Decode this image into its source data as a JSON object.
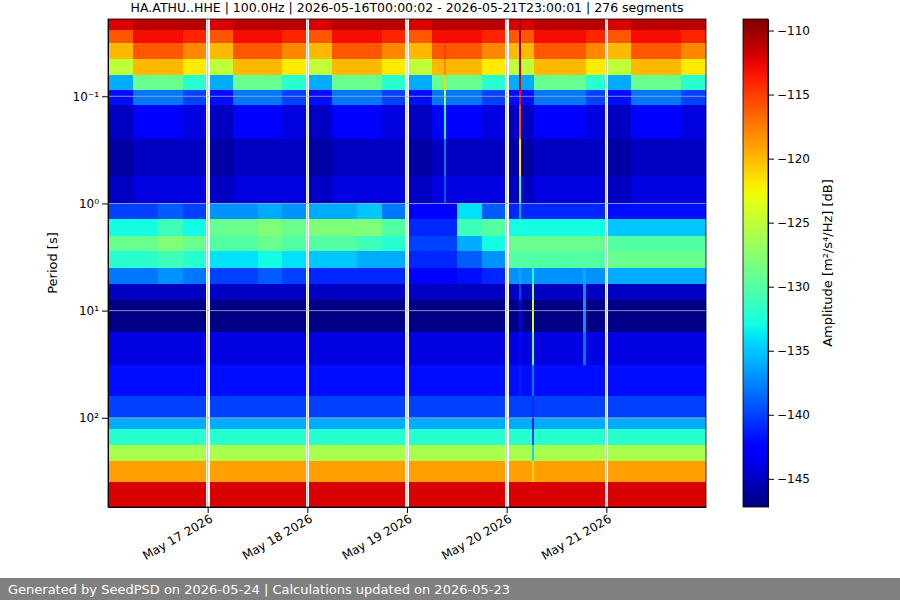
{
  "chart_data": {
    "type": "heatmap",
    "title": "HA.ATHU..HHE | 100.0Hz | 2026-05-16T00:00:02 - 2026-05-21T23:00:01 | 276 segments",
    "y_label": "Period [s]",
    "footer": "Generated by SeedPSD on 2026-05-24 | Calculations updated on 2026-05-23",
    "log": "y",
    "grid": true,
    "color": "jet",
    "xlim": [
      "2026-05-16T00:00",
      "2026-05-22T00:00"
    ],
    "xticks": [
      {
        "value": "2026-05-17T00:00",
        "label": "May 17 2026"
      },
      {
        "value": "2026-05-18T00:00",
        "label": "May 18 2026"
      },
      {
        "value": "2026-05-19T00:00",
        "label": "May 19 2026"
      },
      {
        "value": "2026-05-20T00:00",
        "label": "May 20 2026"
      },
      {
        "value": "2026-05-21T00:00",
        "label": "May 21 2026"
      }
    ],
    "ylim": [
      0.019,
      680
    ],
    "yticks": [
      {
        "value": 0.1,
        "label": "10⁻¹"
      },
      {
        "value": 1,
        "label": "10⁰"
      },
      {
        "value": 10,
        "label": "10¹"
      },
      {
        "value": 100,
        "label": "10²"
      }
    ],
    "colorbar": {
      "label": "Amplitude [m²/s⁴/Hz] [dB]",
      "range": [
        -147.2,
        -109.1
      ],
      "ticks": [
        -145,
        -140,
        -135,
        -130,
        -125,
        -120,
        -115,
        -110
      ]
    },
    "x_edges": [
      "2026-05-16T00:00",
      "2026-05-16T06:00",
      "2026-05-16T12:00",
      "2026-05-16T18:00",
      "2026-05-16T23:30",
      "2026-05-17T00:30",
      "2026-05-17T06:00",
      "2026-05-17T12:00",
      "2026-05-17T18:00",
      "2026-05-17T23:30",
      "2026-05-18T00:30",
      "2026-05-18T06:00",
      "2026-05-18T12:00",
      "2026-05-18T18:00",
      "2026-05-18T23:30",
      "2026-05-19T00:30",
      "2026-05-19T06:00",
      "2026-05-19T09:00",
      "2026-05-19T09:30",
      "2026-05-19T12:00",
      "2026-05-19T18:00",
      "2026-05-19T23:30",
      "2026-05-20T00:30",
      "2026-05-20T03:00",
      "2026-05-20T03:30",
      "2026-05-20T06:00",
      "2026-05-20T06:30",
      "2026-05-20T12:00",
      "2026-05-20T18:30",
      "2026-05-20T19:00",
      "2026-05-20T23:30",
      "2026-05-21T00:30",
      "2026-05-21T06:00",
      "2026-05-21T12:00",
      "2026-05-21T18:00",
      "2026-05-22T00:00"
    ],
    "y_edges": [
      0.019,
      0.024,
      0.032,
      0.045,
      0.063,
      0.087,
      0.12,
      0.25,
      0.56,
      1.0,
      1.4,
      2.0,
      2.8,
      4.0,
      5.6,
      7.9,
      16,
      32,
      63,
      100,
      126,
      178,
      251,
      398,
      680
    ],
    "values": [
      [
        -112,
        -116,
        -120,
        -125,
        -136,
        -142,
        -145,
        -146,
        -145,
        -140,
        -133,
        -129,
        -132,
        -138,
        -145,
        -147,
        -144,
        -142,
        -140,
        -136,
        -132,
        -126,
        -119,
        -112
      ],
      [
        -111,
        -113,
        -116,
        -120,
        -129,
        -138,
        -143,
        -145,
        -144,
        -140,
        -133,
        -129,
        -132,
        -138,
        -145,
        -147,
        -144,
        -142,
        -140,
        -136,
        -132,
        -126,
        -119,
        -112
      ],
      [
        -111,
        -113,
        -116,
        -120,
        -129,
        -138,
        -143,
        -145,
        -144,
        -139,
        -131,
        -128,
        -131,
        -137,
        -145,
        -147,
        -144,
        -142,
        -140,
        -136,
        -132,
        -126,
        -119,
        -112
      ],
      [
        -111,
        -114,
        -118,
        -122,
        -132,
        -140,
        -144,
        -145,
        -144,
        -140,
        -133,
        -129,
        -132,
        -138,
        -145,
        -147,
        -144,
        -142,
        -140,
        -136,
        -132,
        -126,
        -119,
        -112
      ],
      [
        null,
        null,
        null,
        null,
        null,
        null,
        null,
        null,
        null,
        null,
        null,
        null,
        null,
        null,
        null,
        null,
        null,
        null,
        null,
        null,
        null,
        null,
        null,
        null
      ],
      [
        -112,
        -116,
        -120,
        -125,
        -136,
        -142,
        -145,
        -146,
        -145,
        -137,
        -129,
        -130,
        -134,
        -140,
        -145,
        -147,
        -144,
        -142,
        -140,
        -136,
        -132,
        -126,
        -119,
        -112
      ],
      [
        -111,
        -113,
        -116,
        -120,
        -129,
        -138,
        -143,
        -145,
        -144,
        -137,
        -129,
        -130,
        -134,
        -140,
        -145,
        -147,
        -144,
        -142,
        -140,
        -136,
        -132,
        -126,
        -119,
        -112
      ],
      [
        -111,
        -113,
        -116,
        -120,
        -129,
        -138,
        -143,
        -145,
        -144,
        -136,
        -128,
        -129,
        -133,
        -139,
        -145,
        -147,
        -144,
        -142,
        -140,
        -136,
        -132,
        -126,
        -119,
        -112
      ],
      [
        -111,
        -114,
        -118,
        -122,
        -132,
        -140,
        -144,
        -145,
        -144,
        -137,
        -129,
        -130,
        -134,
        -140,
        -145,
        -147,
        -144,
        -142,
        -140,
        -136,
        -132,
        -126,
        -119,
        -112
      ],
      [
        null,
        null,
        null,
        null,
        null,
        null,
        null,
        null,
        null,
        null,
        null,
        null,
        null,
        null,
        null,
        null,
        null,
        null,
        null,
        null,
        null,
        null,
        null,
        null
      ],
      [
        -112,
        -116,
        -120,
        -125,
        -136,
        -142,
        -145,
        -146,
        -145,
        -136,
        -128,
        -130,
        -135,
        -141,
        -145,
        -147,
        -144,
        -142,
        -140,
        -136,
        -132,
        -126,
        -119,
        -112
      ],
      [
        -111,
        -113,
        -116,
        -120,
        -129,
        -138,
        -143,
        -145,
        -144,
        -136,
        -128,
        -130,
        -135,
        -141,
        -145,
        -147,
        -144,
        -142,
        -140,
        -136,
        -132,
        -126,
        -119,
        -112
      ],
      [
        -111,
        -113,
        -116,
        -120,
        -129,
        -138,
        -143,
        -145,
        -144,
        -135,
        -128,
        -131,
        -136,
        -141,
        -145,
        -147,
        -144,
        -142,
        -140,
        -136,
        -132,
        -126,
        -119,
        -112
      ],
      [
        -111,
        -114,
        -118,
        -122,
        -132,
        -140,
        -144,
        -145,
        -144,
        -138,
        -130,
        -132,
        -136,
        -141,
        -145,
        -147,
        -144,
        -142,
        -140,
        -136,
        -132,
        -126,
        -119,
        -112
      ],
      [
        null,
        null,
        null,
        null,
        null,
        null,
        null,
        null,
        null,
        null,
        null,
        null,
        null,
        null,
        null,
        null,
        null,
        null,
        null,
        null,
        null,
        null,
        null,
        null
      ],
      [
        -112,
        -116,
        -120,
        -125,
        -136,
        -142,
        -145,
        -146,
        -145,
        -143,
        -141,
        -140,
        -141,
        -143,
        -145,
        -147,
        -144,
        -142,
        -140,
        -136,
        -132,
        -126,
        -119,
        -112
      ],
      [
        -111,
        -113,
        -116,
        -120,
        -129,
        -138,
        -143,
        -145,
        -144,
        -143,
        -141,
        -140,
        -141,
        -143,
        -145,
        -147,
        -144,
        -142,
        -140,
        -136,
        -132,
        -126,
        -119,
        -112
      ],
      [
        -111,
        -113,
        -115,
        -118,
        -121,
        -126,
        -133,
        -138,
        -139,
        -143,
        -141,
        -140,
        -141,
        -143,
        -145,
        -147,
        -144,
        -142,
        -140,
        -136,
        -132,
        -126,
        -119,
        -112
      ],
      [
        -111,
        -113,
        -116,
        -120,
        -129,
        -138,
        -143,
        -145,
        -144,
        -143,
        -141,
        -140,
        -141,
        -143,
        -145,
        -147,
        -144,
        -142,
        -140,
        -136,
        -132,
        -126,
        -119,
        -112
      ],
      [
        -111,
        -113,
        -116,
        -120,
        -129,
        -138,
        -143,
        -145,
        -144,
        -134,
        -131,
        -136,
        -139,
        -142,
        -145,
        -147,
        -144,
        -142,
        -140,
        -136,
        -132,
        -126,
        -119,
        -112
      ],
      [
        -111,
        -114,
        -118,
        -122,
        -132,
        -140,
        -144,
        -145,
        -144,
        -139,
        -130,
        -133,
        -137,
        -141,
        -145,
        -147,
        -144,
        -142,
        -140,
        -136,
        -132,
        -126,
        -119,
        -112
      ],
      [
        null,
        null,
        null,
        null,
        null,
        null,
        null,
        null,
        null,
        null,
        null,
        null,
        null,
        null,
        null,
        null,
        null,
        null,
        null,
        null,
        null,
        null,
        null,
        null
      ],
      [
        -112,
        -116,
        -120,
        -125,
        -136,
        -142,
        -145,
        -146,
        -145,
        -141,
        -133,
        -129,
        -130,
        -137,
        -145,
        -147,
        -144,
        -142,
        -140,
        -136,
        -132,
        -126,
        -119,
        -112
      ],
      [
        -110,
        -110,
        -110,
        -111,
        -112,
        -113,
        -116,
        -122,
        -131,
        -136,
        -132,
        -129,
        -130,
        -136,
        -140,
        -143,
        -142,
        -141,
        -140,
        -136,
        -132,
        -126,
        -119,
        -112
      ],
      [
        -112,
        -116,
        -120,
        -125,
        -136,
        -142,
        -145,
        -146,
        -145,
        -141,
        -133,
        -129,
        -130,
        -137,
        -145,
        -147,
        -144,
        -142,
        -140,
        -136,
        -132,
        -126,
        -119,
        -112
      ],
      [
        -112,
        -116,
        -120,
        -125,
        -136,
        -142,
        -145,
        -146,
        -145,
        -141,
        -133,
        -129,
        -130,
        -133,
        -128,
        -124,
        -130,
        -138,
        -141,
        -142,
        -140,
        -134,
        -121,
        -112
      ],
      [
        -111,
        -113,
        -116,
        -120,
        -129,
        -138,
        -143,
        -145,
        -144,
        -141,
        -133,
        -129,
        -130,
        -137,
        -145,
        -147,
        -144,
        -142,
        -140,
        -136,
        -132,
        -126,
        -119,
        -112
      ],
      [
        -111,
        -113,
        -116,
        -120,
        -129,
        -138,
        -143,
        -145,
        -144,
        -141,
        -133,
        -129,
        -130,
        -137,
        -145,
        -147,
        -144,
        -142,
        -140,
        -136,
        -132,
        -126,
        -119,
        -112
      ],
      [
        -111,
        -113,
        -116,
        -120,
        -129,
        -138,
        -143,
        -145,
        -144,
        -141,
        -133,
        -129,
        -130,
        -136,
        -137,
        -137,
        -138,
        -142,
        -140,
        -136,
        -132,
        -126,
        -119,
        -112
      ],
      [
        -111,
        -114,
        -118,
        -122,
        -132,
        -140,
        -144,
        -145,
        -144,
        -141,
        -133,
        -129,
        -130,
        -137,
        -145,
        -147,
        -144,
        -142,
        -140,
        -136,
        -132,
        -126,
        -119,
        -112
      ],
      [
        null,
        null,
        null,
        null,
        null,
        null,
        null,
        null,
        null,
        null,
        null,
        null,
        null,
        null,
        null,
        null,
        null,
        null,
        null,
        null,
        null,
        null,
        null,
        null
      ],
      [
        -112,
        -116,
        -120,
        -125,
        -136,
        -142,
        -145,
        -146,
        -145,
        -142,
        -135,
        -130,
        -129,
        -136,
        -145,
        -147,
        -144,
        -142,
        -140,
        -136,
        -132,
        -126,
        -119,
        -112
      ],
      [
        -111,
        -113,
        -116,
        -120,
        -129,
        -138,
        -143,
        -145,
        -144,
        -142,
        -135,
        -130,
        -129,
        -136,
        -145,
        -147,
        -144,
        -142,
        -140,
        -136,
        -132,
        -126,
        -119,
        -112
      ],
      [
        -111,
        -113,
        -116,
        -120,
        -129,
        -138,
        -143,
        -145,
        -144,
        -142,
        -135,
        -130,
        -129,
        -136,
        -145,
        -147,
        -144,
        -142,
        -140,
        -136,
        -132,
        -126,
        -119,
        -112
      ],
      [
        -111,
        -114,
        -118,
        -122,
        -132,
        -140,
        -144,
        -145,
        -144,
        -142,
        -135,
        -130,
        -129,
        -136,
        -145,
        -147,
        -144,
        -142,
        -140,
        -136,
        -132,
        -126,
        -119,
        -112
      ]
    ]
  }
}
